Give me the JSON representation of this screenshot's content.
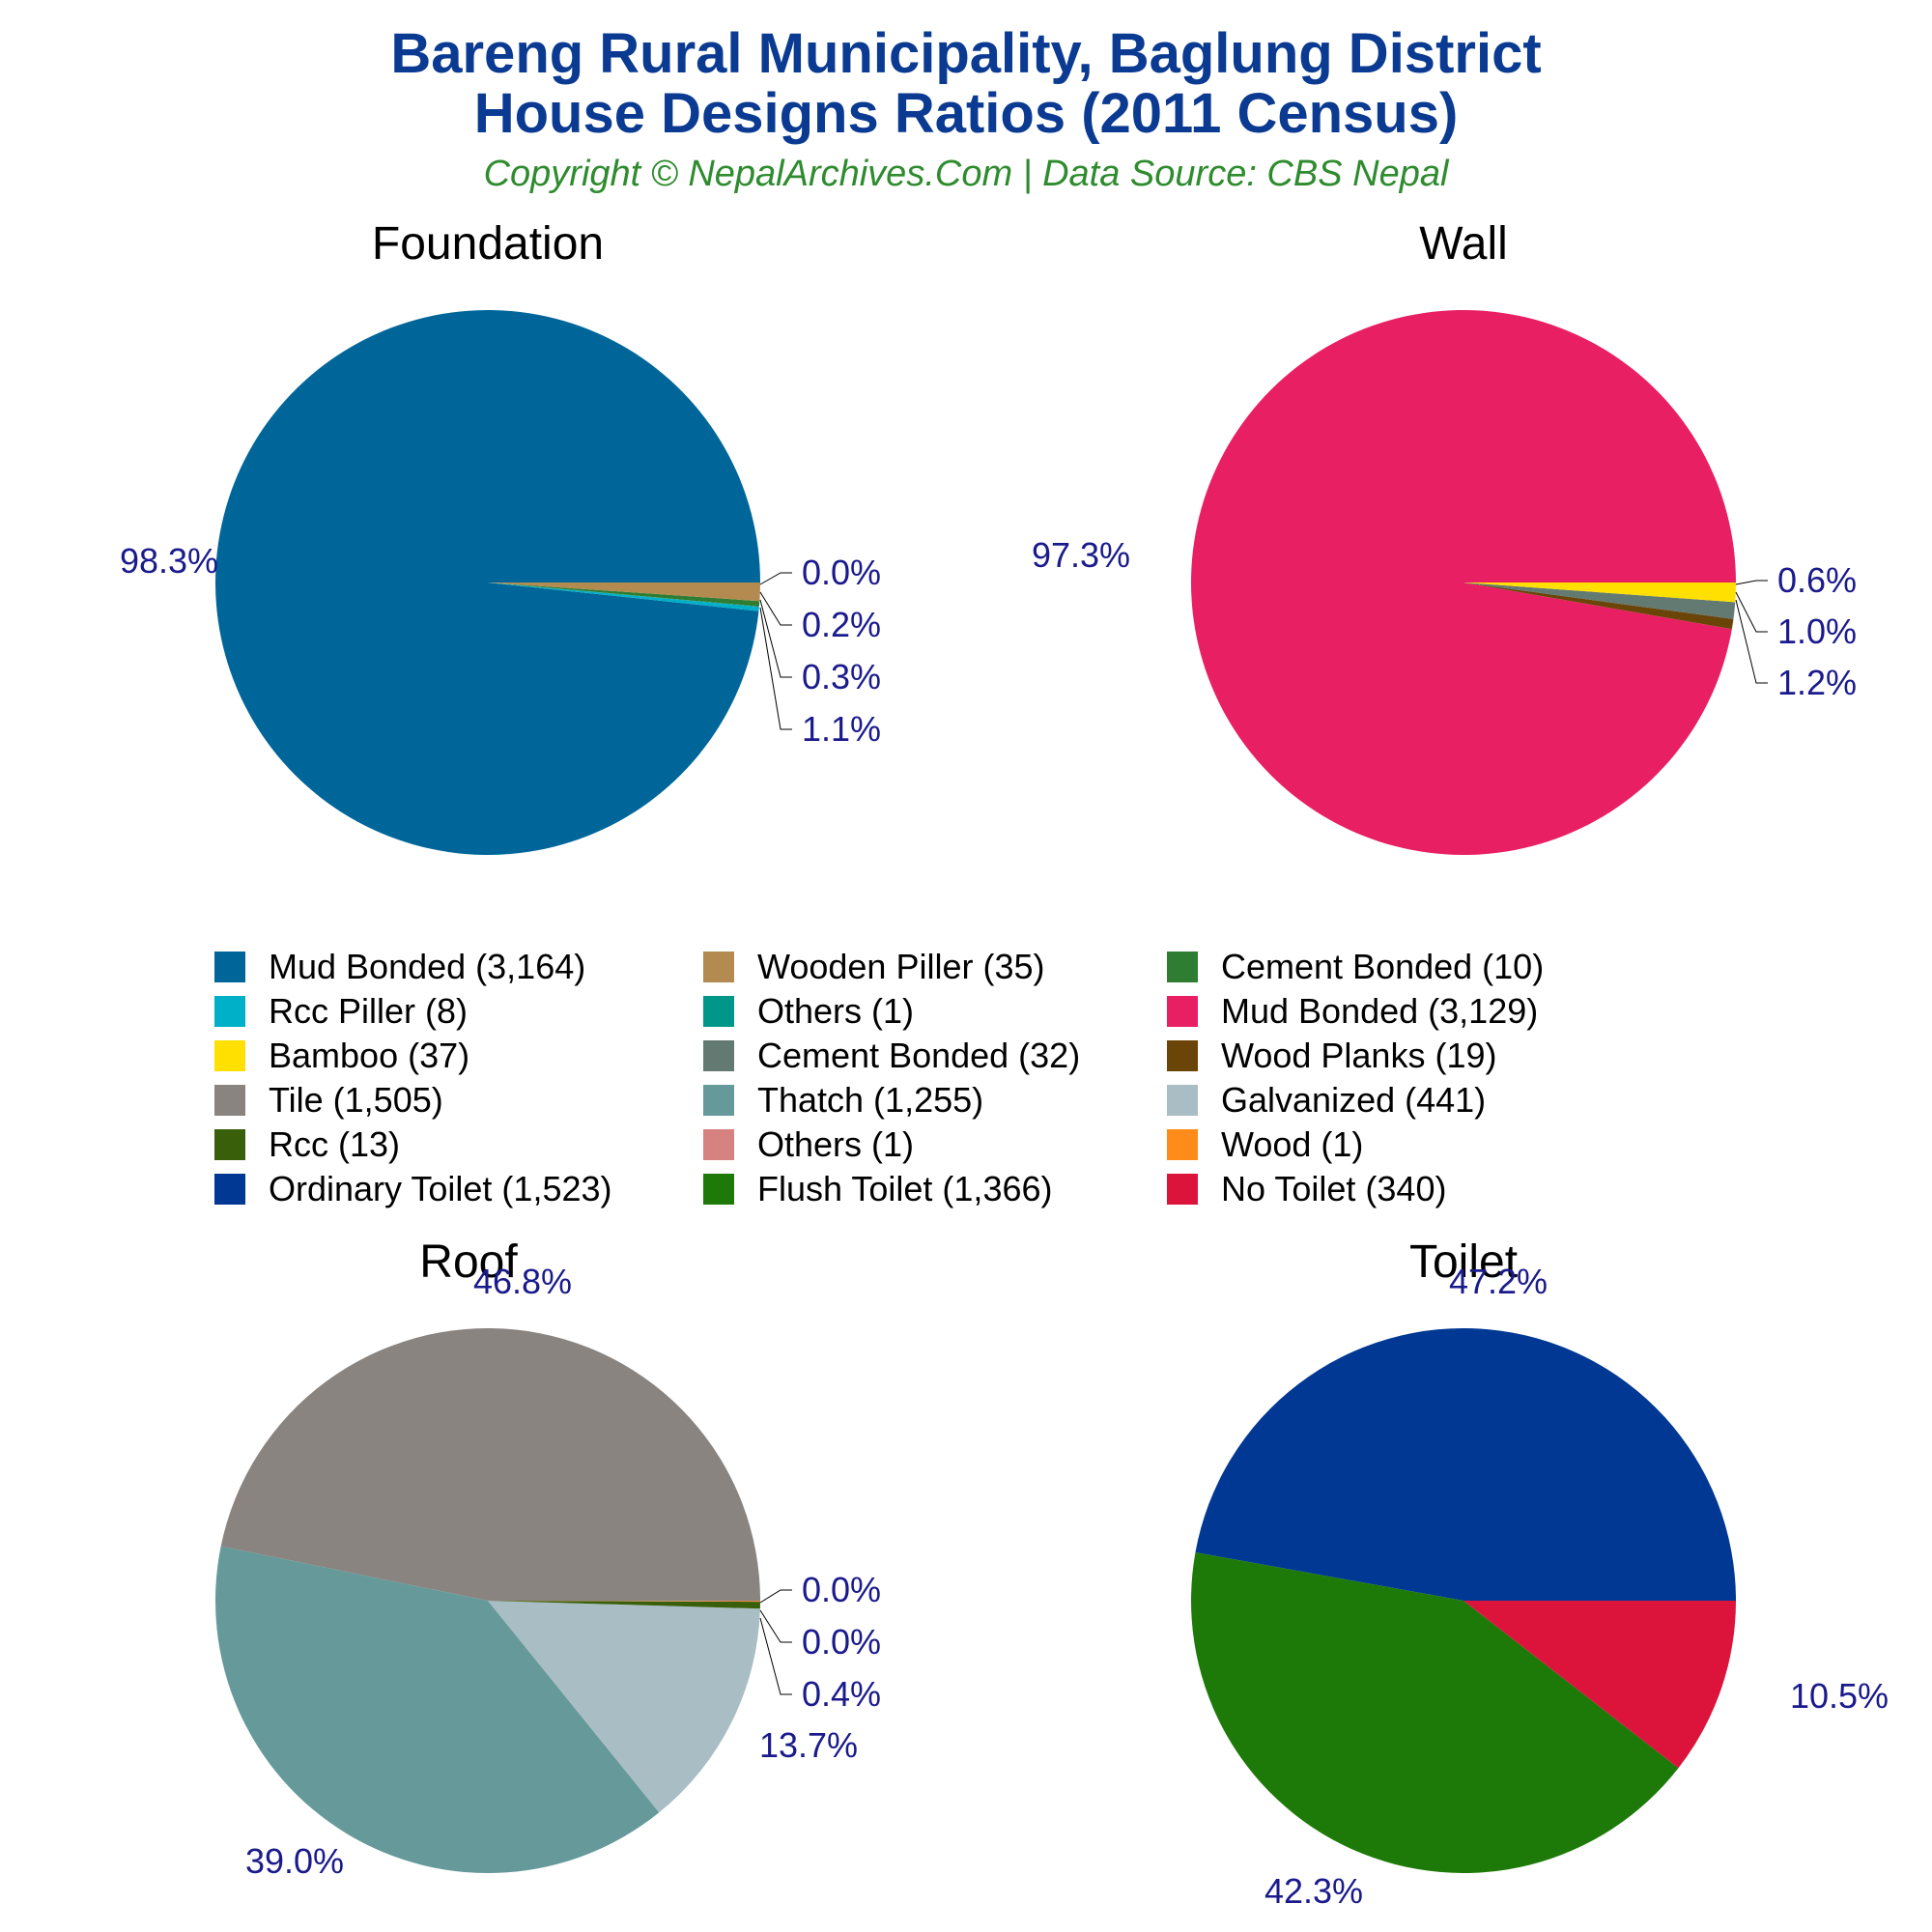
{
  "header": {
    "title_line1": "Bareng Rural Municipality, Baglung District",
    "title_line2": "House Designs Ratios (2011 Census)",
    "subtitle": "Copyright © NepalArchives.Com | Data Source: CBS Nepal"
  },
  "colors": {
    "title": "#0a3a91",
    "subtitle": "#2e8b2e",
    "percent_label": "#1a1a8c"
  },
  "legend": {
    "placement": "center",
    "items": [
      {
        "label": "Mud Bonded (3,164)",
        "color": "#00669a"
      },
      {
        "label": "Wooden Piller (35)",
        "color": "#b38b50"
      },
      {
        "label": "Cement Bonded (10)",
        "color": "#2e7d32"
      },
      {
        "label": "Rcc Piller (8)",
        "color": "#00b0c8"
      },
      {
        "label": "Others (1)",
        "color": "#00968a"
      },
      {
        "label": "Mud Bonded (3,129)",
        "color": "#e91f63"
      },
      {
        "label": "Bamboo (37)",
        "color": "#ffe000"
      },
      {
        "label": "Cement Bonded (32)",
        "color": "#627a72"
      },
      {
        "label": "Wood Planks (19)",
        "color": "#6b4408"
      },
      {
        "label": "Tile (1,505)",
        "color": "#8a8480"
      },
      {
        "label": "Thatch (1,255)",
        "color": "#669999"
      },
      {
        "label": "Galvanized (441)",
        "color": "#a9bdc5"
      },
      {
        "label": "Rcc (13)",
        "color": "#3a5f0b"
      },
      {
        "label": "Others (1)",
        "color": "#d68280"
      },
      {
        "label": "Wood (1)",
        "color": "#ff8c1a"
      },
      {
        "label": "Ordinary Toilet (1,523)",
        "color": "#003893"
      },
      {
        "label": "Flush Toilet (1,366)",
        "color": "#1e7a08"
      },
      {
        "label": "No Toilet (340)",
        "color": "#dc143c"
      }
    ]
  },
  "chart_data": [
    {
      "type": "pie",
      "title": "Foundation",
      "slices": [
        {
          "label": "Mud Bonded",
          "value": 3164,
          "percent": "98.3%",
          "color": "#00669a"
        },
        {
          "label": "Rcc Piller",
          "value": 8,
          "percent": "0.2%",
          "color": "#00b0c8"
        },
        {
          "label": "Others",
          "value": 1,
          "percent": "0.0%",
          "color": "#00968a"
        },
        {
          "label": "Cement Bonded",
          "value": 10,
          "percent": "0.3%",
          "color": "#2e7d32"
        },
        {
          "label": "Wooden Piller",
          "value": 35,
          "percent": "1.1%",
          "color": "#b38b50"
        }
      ],
      "small_labels": [
        "0.0%",
        "0.2%",
        "0.3%",
        "1.1%"
      ]
    },
    {
      "type": "pie",
      "title": "Wall",
      "slices": [
        {
          "label": "Mud Bonded",
          "value": 3129,
          "percent": "97.3%",
          "color": "#e91f63"
        },
        {
          "label": "Wood Planks",
          "value": 19,
          "percent": "0.6%",
          "color": "#6b4408"
        },
        {
          "label": "Cement Bonded",
          "value": 32,
          "percent": "1.0%",
          "color": "#627a72"
        },
        {
          "label": "Bamboo",
          "value": 37,
          "percent": "1.2%",
          "color": "#ffe000"
        }
      ],
      "small_labels": [
        "0.6%",
        "1.0%",
        "1.2%"
      ]
    },
    {
      "type": "pie",
      "title": "Roof",
      "slices": [
        {
          "label": "Tile",
          "value": 1505,
          "percent": "46.8%",
          "color": "#8a8480"
        },
        {
          "label": "Thatch",
          "value": 1255,
          "percent": "39.0%",
          "color": "#669999"
        },
        {
          "label": "Galvanized",
          "value": 441,
          "percent": "13.7%",
          "color": "#a9bdc5"
        },
        {
          "label": "Rcc",
          "value": 13,
          "percent": "0.4%",
          "color": "#3a5f0b"
        },
        {
          "label": "Wood",
          "value": 1,
          "percent": "0.0%",
          "color": "#ff8c1a"
        },
        {
          "label": "Others",
          "value": 1,
          "percent": "0.0%",
          "color": "#d68280"
        }
      ],
      "small_labels": [
        "0.0%",
        "0.0%",
        "0.4%"
      ]
    },
    {
      "type": "pie",
      "title": "Toilet",
      "slices": [
        {
          "label": "Ordinary Toilet",
          "value": 1523,
          "percent": "47.2%",
          "color": "#003893"
        },
        {
          "label": "Flush Toilet",
          "value": 1366,
          "percent": "42.3%",
          "color": "#1e7a08"
        },
        {
          "label": "No Toilet",
          "value": 340,
          "percent": "10.5%",
          "color": "#dc143c"
        }
      ],
      "small_labels": []
    }
  ]
}
